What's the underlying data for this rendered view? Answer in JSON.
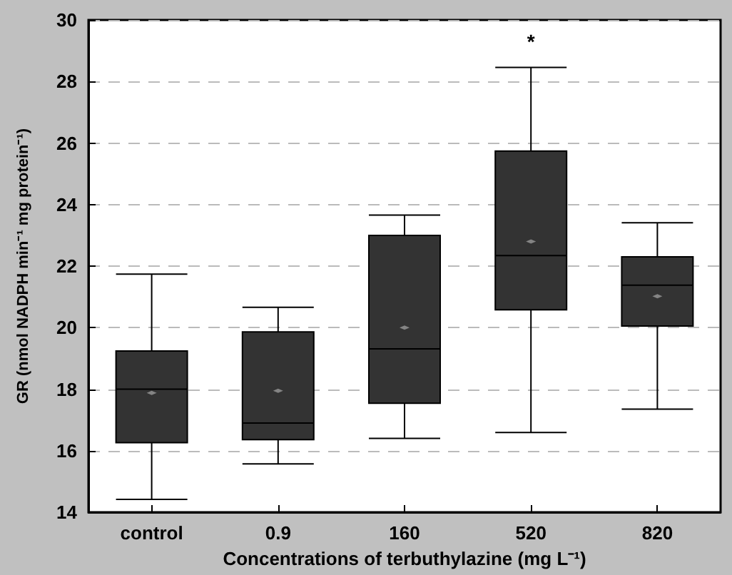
{
  "chart_data": {
    "type": "box",
    "xlabel": "Concentrations of terbuthylazine (mg L⁻¹)",
    "ylabel": "GR (nmol NADPH min⁻¹ mg protein⁻¹)",
    "categories": [
      "control",
      "0.9",
      "160",
      "520",
      "820"
    ],
    "color": "#333333",
    "boxes": [
      {
        "low": 14.42,
        "q1": 16.26,
        "median": 18.0,
        "q3": 19.24,
        "high": 21.74,
        "mean": 17.88
      },
      {
        "low": 15.57,
        "q1": 16.36,
        "median": 16.9,
        "q3": 19.86,
        "high": 20.66,
        "mean": 17.95
      },
      {
        "low": 16.4,
        "q1": 17.54,
        "median": 19.31,
        "q3": 23.0,
        "high": 23.66,
        "mean": 20.0
      },
      {
        "low": 16.59,
        "q1": 20.58,
        "median": 22.34,
        "q3": 25.74,
        "high": 28.46,
        "mean": 22.8
      },
      {
        "low": 17.35,
        "q1": 20.05,
        "median": 21.38,
        "q3": 22.3,
        "high": 23.41,
        "mean": 21.02
      }
    ],
    "ylim": [
      14,
      30
    ],
    "yticks": [
      14,
      16,
      18,
      20,
      22,
      24,
      26,
      28,
      30
    ],
    "grid": "y",
    "annotations": [
      "*"
    ]
  }
}
